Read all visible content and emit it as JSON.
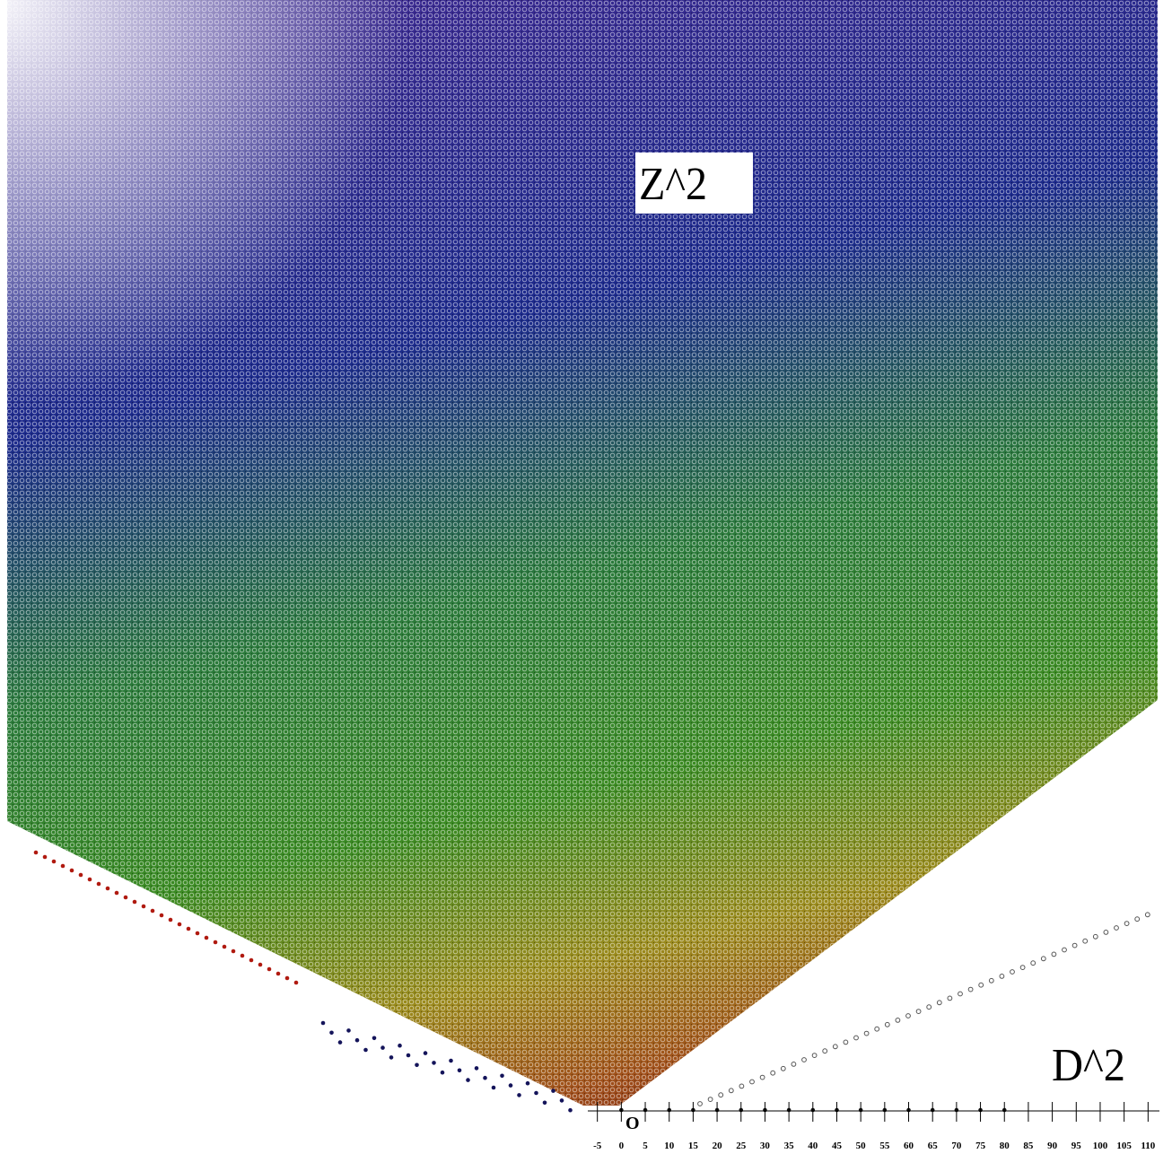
{
  "labels": {
    "surface": "Z^2",
    "base": "D^2",
    "origin": "O"
  },
  "axis": {
    "xlim": [
      -7,
      112
    ],
    "xticks": [
      -5,
      0,
      5,
      10,
      15,
      20,
      25,
      30,
      35,
      40,
      45,
      50,
      55,
      60,
      65,
      70,
      75,
      80,
      85,
      90,
      95,
      100,
      105,
      110
    ]
  }
}
